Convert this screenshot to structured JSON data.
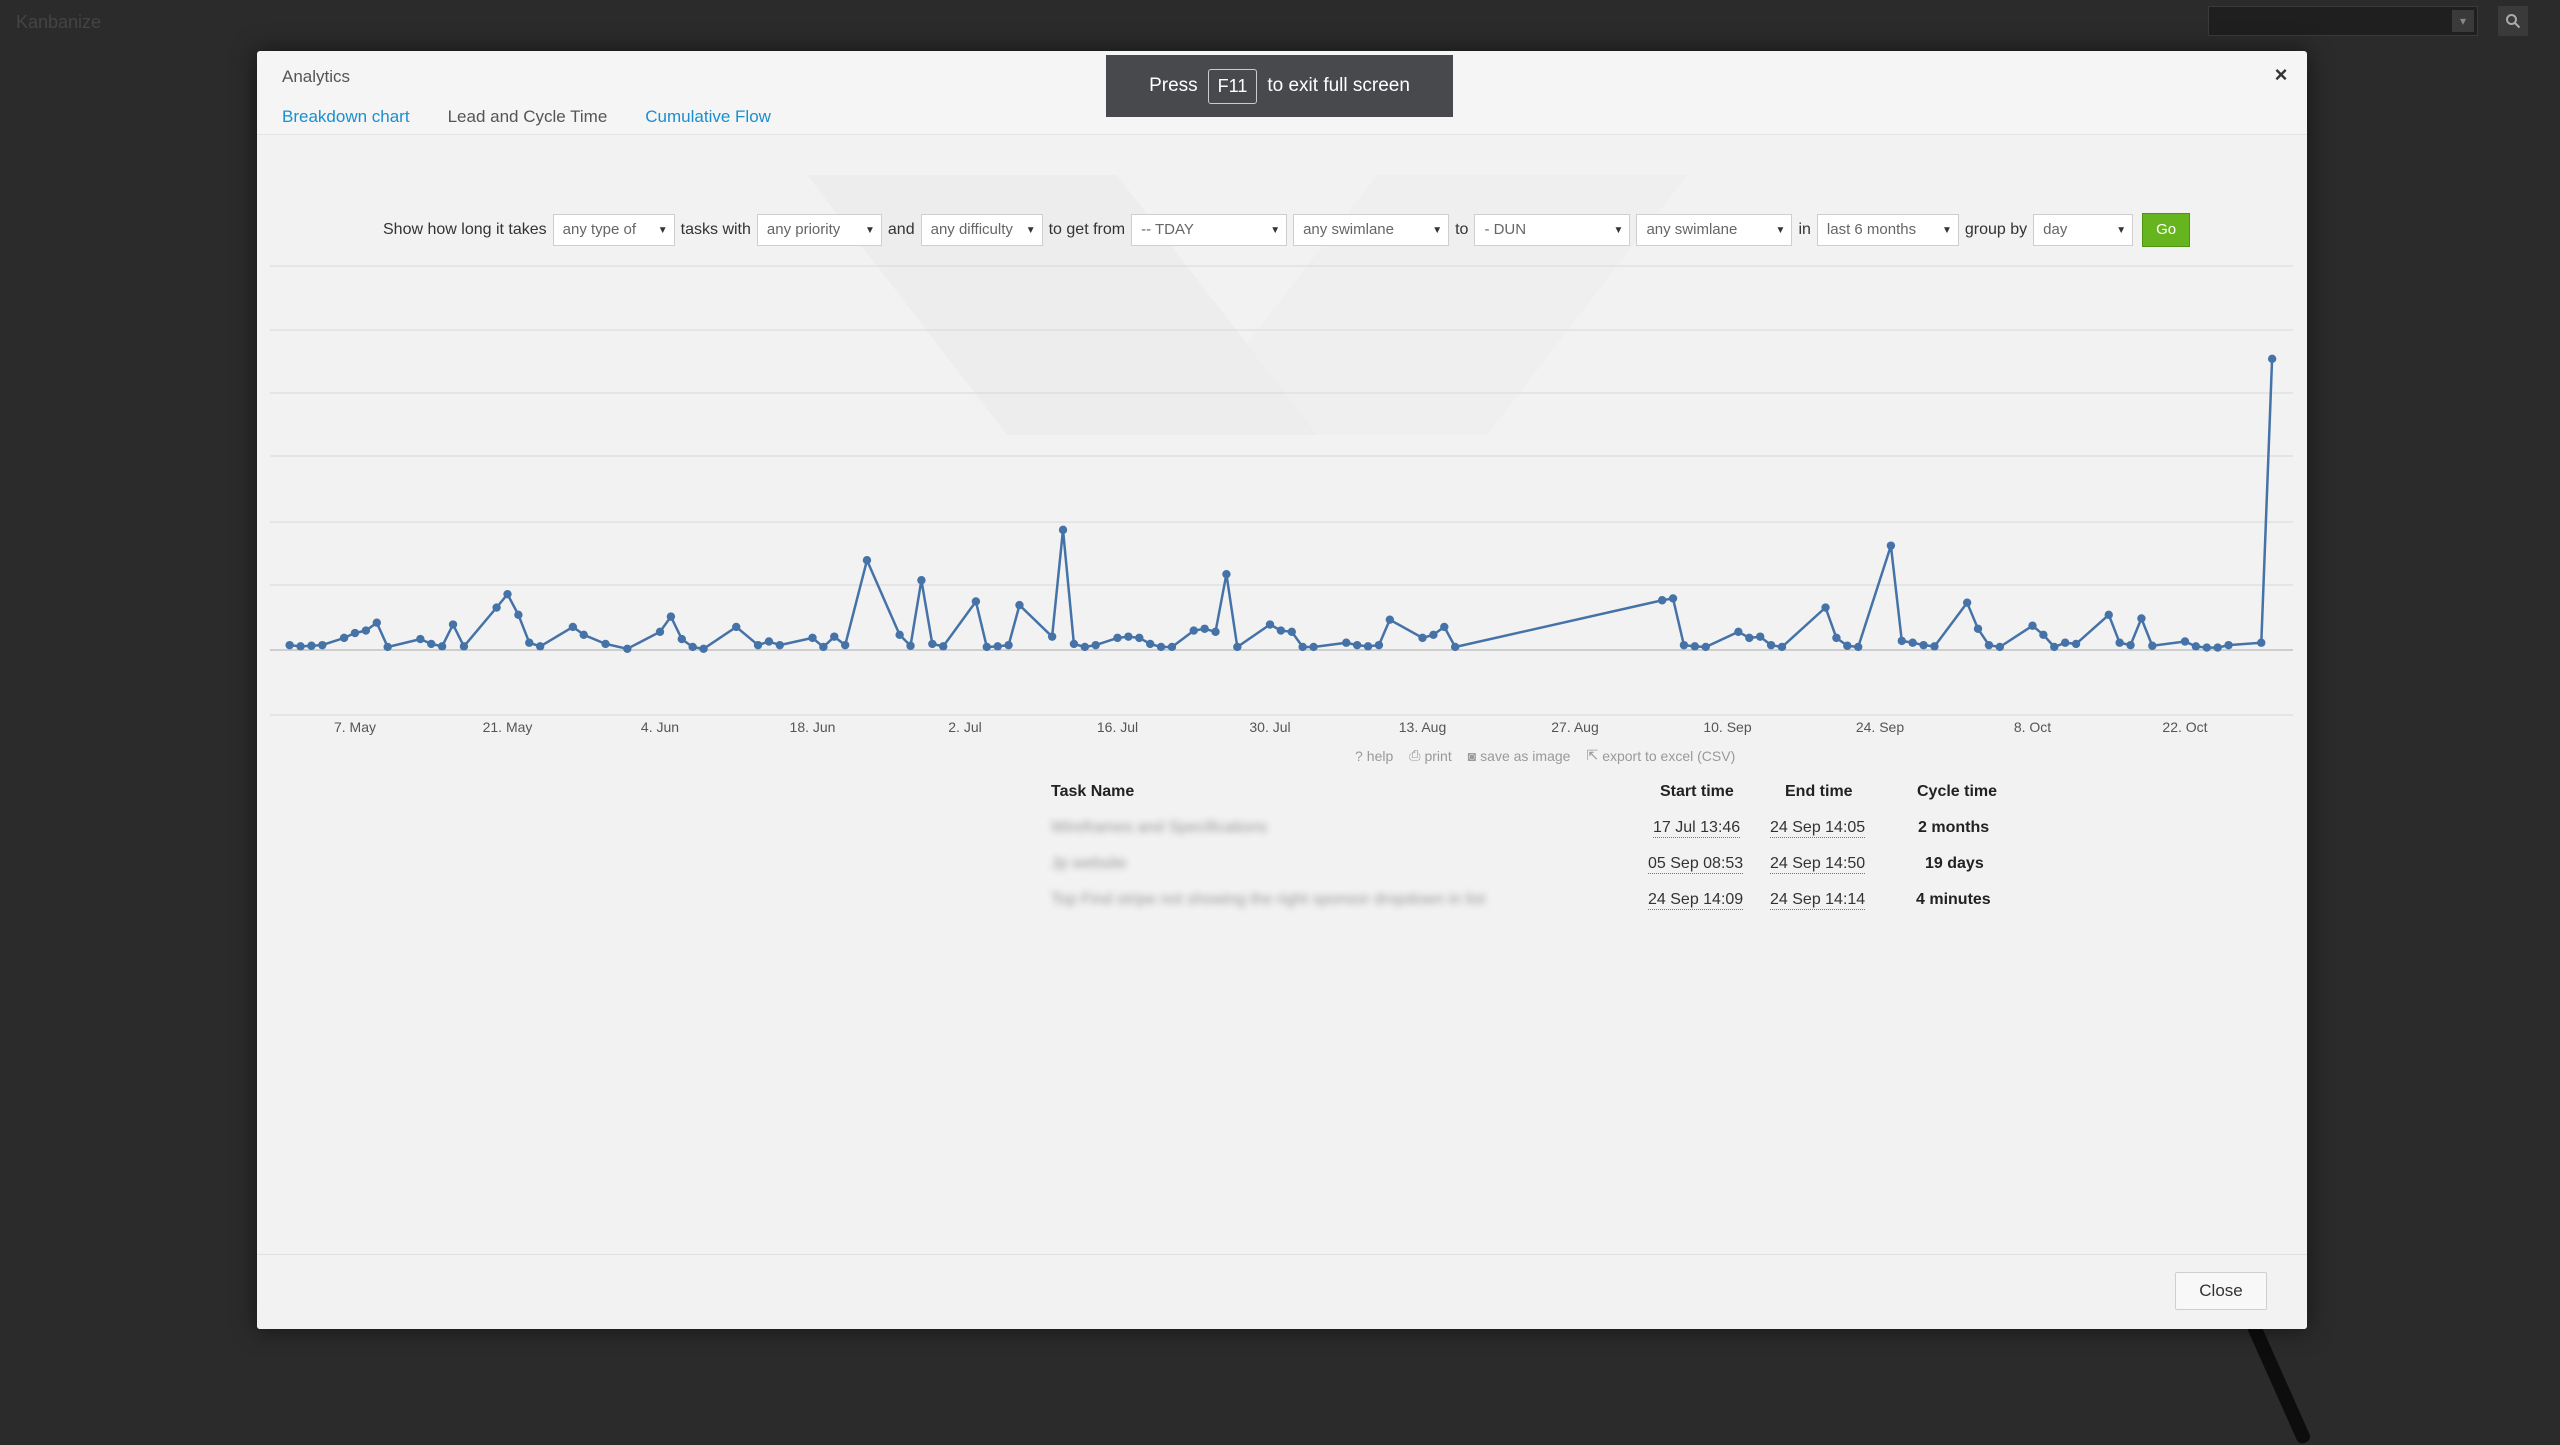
{
  "app": {
    "top_left_text": "Kanbanize"
  },
  "modal": {
    "title": "Analytics",
    "close_x": "×",
    "tabs": [
      {
        "label": "Breakdown chart",
        "active": false
      },
      {
        "label": "Lead and Cycle Time",
        "active": true
      },
      {
        "label": "Cumulative Flow",
        "active": false
      }
    ],
    "close_button": "Close"
  },
  "fullscreen_toast": {
    "before": "Press",
    "key": "F11",
    "after": "to exit full screen"
  },
  "filters": {
    "t1": "Show how long it takes",
    "type": "any type of",
    "t2": "tasks with",
    "priority": "any priority",
    "t3": "and",
    "difficulty": "any difficulty",
    "t4": "to get from",
    "from_column": "-- TDAY",
    "from_swimlane": "any swimlane",
    "t5": "to",
    "to_column": "- DUN",
    "to_swimlane": "any swimlane",
    "t6": "in",
    "period": "last 6 months",
    "t7": "group by",
    "group": "day",
    "go": "Go"
  },
  "chart_tools": {
    "help": "help",
    "print": "print",
    "save": "save as image",
    "export": "export to excel (CSV)"
  },
  "chart_data": {
    "type": "line",
    "title": "",
    "xlabel": "",
    "ylabel": "",
    "x_tick_labels": [
      "7. May",
      "21. May",
      "4. Jun",
      "18. Jun",
      "2. Jul",
      "16. Jul",
      "30. Jul",
      "13. Aug",
      "27. Aug",
      "10. Sep",
      "24. Sep",
      "8. Oct",
      "22. Oct"
    ],
    "x_tick_days": [
      7,
      21,
      35,
      49,
      63,
      77,
      91,
      105,
      119,
      133,
      147,
      161,
      175
    ],
    "x_unit": "days since 1. May",
    "ylim": [
      0,
      6
    ],
    "grid": true,
    "series": [
      {
        "color": "#4572a7",
        "points": [
          [
            1,
            0.08
          ],
          [
            2,
            0.06
          ],
          [
            3,
            0.07
          ],
          [
            4,
            0.08
          ],
          [
            6,
            0.2
          ],
          [
            7,
            0.28
          ],
          [
            8,
            0.32
          ],
          [
            9,
            0.45
          ],
          [
            10,
            0.05
          ],
          [
            13,
            0.18
          ],
          [
            14,
            0.1
          ],
          [
            15,
            0.06
          ],
          [
            16,
            0.42
          ],
          [
            17,
            0.06
          ],
          [
            20,
            0.7
          ],
          [
            21,
            0.92
          ],
          [
            22,
            0.58
          ],
          [
            23,
            0.12
          ],
          [
            24,
            0.06
          ],
          [
            27,
            0.38
          ],
          [
            28,
            0.25
          ],
          [
            30,
            0.1
          ],
          [
            32,
            0.02
          ],
          [
            35,
            0.3
          ],
          [
            36,
            0.55
          ],
          [
            37,
            0.18
          ],
          [
            38,
            0.05
          ],
          [
            39,
            0.02
          ],
          [
            42,
            0.38
          ],
          [
            44,
            0.08
          ],
          [
            45,
            0.14
          ],
          [
            46,
            0.08
          ],
          [
            49,
            0.2
          ],
          [
            50,
            0.05
          ],
          [
            51,
            0.22
          ],
          [
            52,
            0.08
          ],
          [
            54,
            1.48
          ],
          [
            57,
            0.25
          ],
          [
            58,
            0.07
          ],
          [
            59,
            1.15
          ],
          [
            60,
            0.1
          ],
          [
            61,
            0.06
          ],
          [
            64,
            0.8
          ],
          [
            65,
            0.05
          ],
          [
            66,
            0.06
          ],
          [
            67,
            0.08
          ],
          [
            68,
            0.74
          ],
          [
            71,
            0.22
          ],
          [
            72,
            1.98
          ],
          [
            73,
            0.1
          ],
          [
            74,
            0.05
          ],
          [
            75,
            0.08
          ],
          [
            77,
            0.2
          ],
          [
            78,
            0.22
          ],
          [
            79,
            0.2
          ],
          [
            80,
            0.1
          ],
          [
            81,
            0.05
          ],
          [
            82,
            0.05
          ],
          [
            84,
            0.32
          ],
          [
            85,
            0.35
          ],
          [
            86,
            0.3
          ],
          [
            87,
            1.25
          ],
          [
            88,
            0.05
          ],
          [
            91,
            0.42
          ],
          [
            92,
            0.32
          ],
          [
            93,
            0.3
          ],
          [
            94,
            0.05
          ],
          [
            95,
            0.05
          ],
          [
            98,
            0.12
          ],
          [
            99,
            0.08
          ],
          [
            100,
            0.06
          ],
          [
            101,
            0.08
          ],
          [
            102,
            0.5
          ],
          [
            105,
            0.2
          ],
          [
            106,
            0.25
          ],
          [
            107,
            0.38
          ],
          [
            108,
            0.05
          ],
          [
            127,
            0.82
          ],
          [
            128,
            0.85
          ],
          [
            129,
            0.08
          ],
          [
            130,
            0.06
          ],
          [
            131,
            0.05
          ],
          [
            134,
            0.3
          ],
          [
            135,
            0.2
          ],
          [
            136,
            0.22
          ],
          [
            137,
            0.08
          ],
          [
            138,
            0.05
          ],
          [
            142,
            0.7
          ],
          [
            143,
            0.2
          ],
          [
            144,
            0.07
          ],
          [
            145,
            0.05
          ],
          [
            148,
            1.72
          ],
          [
            149,
            0.15
          ],
          [
            150,
            0.12
          ],
          [
            151,
            0.08
          ],
          [
            152,
            0.06
          ],
          [
            155,
            0.78
          ],
          [
            156,
            0.35
          ],
          [
            157,
            0.08
          ],
          [
            158,
            0.05
          ],
          [
            161,
            0.4
          ],
          [
            162,
            0.25
          ],
          [
            163,
            0.05
          ],
          [
            164,
            0.12
          ],
          [
            165,
            0.1
          ],
          [
            168,
            0.58
          ],
          [
            169,
            0.12
          ],
          [
            170,
            0.08
          ],
          [
            171,
            0.52
          ],
          [
            172,
            0.07
          ],
          [
            175,
            0.14
          ],
          [
            176,
            0.06
          ],
          [
            177,
            0.04
          ],
          [
            178,
            0.04
          ],
          [
            179,
            0.08
          ],
          [
            182,
            0.12
          ],
          [
            183,
            4.8
          ]
        ]
      }
    ]
  },
  "table": {
    "headers": {
      "name": "Task Name",
      "start": "Start time",
      "end": "End time",
      "cycle": "Cycle time"
    },
    "rows": [
      {
        "name": "Wireframes and Specifications",
        "start": "17 Jul 13:46",
        "end": "24 Sep 14:05",
        "cycle": "2 months"
      },
      {
        "name": "Jp website",
        "start": "05 Sep 08:53",
        "end": "24 Sep 14:50",
        "cycle": "19 days"
      },
      {
        "name": "Top Find stripe not showing the right sponsor dropdown in list",
        "start": "24 Sep 14:09",
        "end": "24 Sep 14:14",
        "cycle": "4 minutes"
      }
    ]
  }
}
